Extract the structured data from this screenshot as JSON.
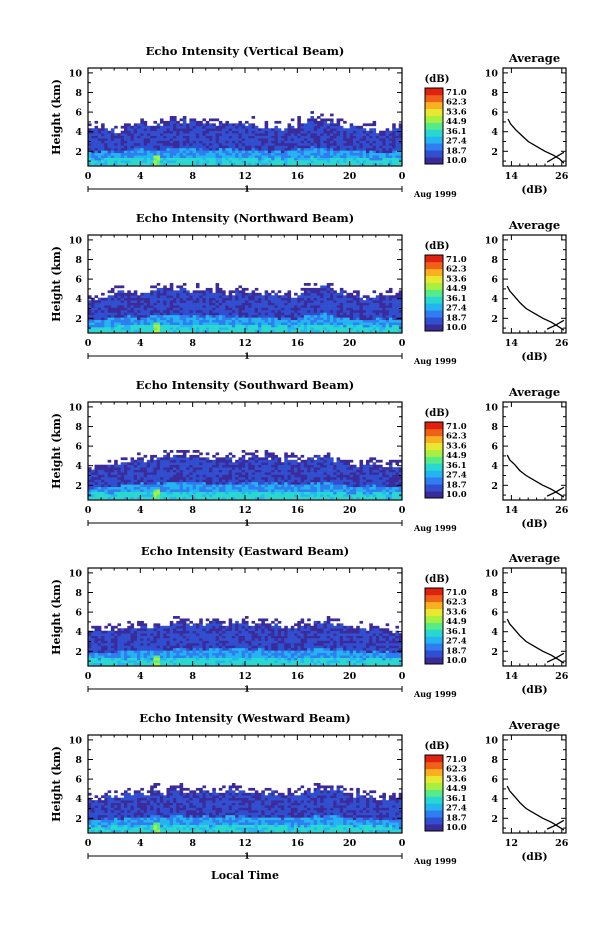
{
  "page": {
    "xlabel": "Local Time",
    "date_label": "Aug 1999",
    "day_label": "1"
  },
  "colorbar": {
    "unit": "(dB)",
    "ticks": [
      "71.0",
      "62.3",
      "53.6",
      "44.9",
      "36.1",
      "27.4",
      "18.7",
      "10.0"
    ],
    "range": [
      10.0,
      71.0
    ],
    "colors": [
      "#3a2a9a",
      "#2f4fd0",
      "#2f7df0",
      "#25b4f2",
      "#28d8d0",
      "#56ea88",
      "#a8f040",
      "#e8e830",
      "#f8b020",
      "#f06018",
      "#e02010"
    ]
  },
  "chart_data": [
    {
      "type": "heatmap",
      "title": "Echo Intensity (Vertical Beam)",
      "ylabel": "Height (km)",
      "x_ticks": [
        "0",
        "4",
        "8",
        "12",
        "16",
        "20",
        "0"
      ],
      "xlim": [
        0,
        24
      ],
      "ylim": [
        0.5,
        10.5
      ],
      "y_ticks": [
        "10",
        "8",
        "6",
        "4",
        "2"
      ],
      "top_height_km": [
        4.1,
        4.2,
        3.9,
        4.4,
        4.6,
        4.3,
        4.8,
        5.0,
        4.9,
        4.7,
        4.8,
        4.6,
        4.7,
        4.5,
        4.3,
        4.2,
        4.6,
        5.3,
        5.0,
        4.6,
        4.3,
        4.4,
        4.0,
        4.2
      ],
      "average": {
        "title": "Average",
        "xlabel": "(dB)",
        "x_ticks": [
          "14",
          "26"
        ],
        "xlim": [
          12,
          27
        ],
        "y_ticks": [
          "10",
          "8",
          "6",
          "4",
          "2"
        ],
        "ylim": [
          0.5,
          10.5
        ],
        "profile_db": [
          26.5,
          25.5,
          24.0,
          22.0,
          20.0,
          18.0,
          16.5,
          15.0,
          13.8,
          13.2
        ],
        "profile_height_km": [
          0.8,
          1.2,
          1.6,
          2.0,
          2.5,
          3.0,
          3.6,
          4.2,
          4.8,
          5.3
        ],
        "tail_db": [
          22.5,
          24.5,
          26.5
        ],
        "tail_height_km": [
          0.9,
          1.4,
          1.9
        ]
      }
    },
    {
      "type": "heatmap",
      "title": "Echo Intensity (Northward Beam)",
      "ylabel": "Height (km)",
      "x_ticks": [
        "0",
        "4",
        "8",
        "12",
        "16",
        "20",
        "0"
      ],
      "xlim": [
        0,
        24
      ],
      "ylim": [
        0.5,
        10.5
      ],
      "y_ticks": [
        "10",
        "8",
        "6",
        "4",
        "2"
      ],
      "top_height_km": [
        3.6,
        3.9,
        4.4,
        4.5,
        4.2,
        4.7,
        4.8,
        4.9,
        4.6,
        4.7,
        4.5,
        4.4,
        4.6,
        4.4,
        4.2,
        4.0,
        4.3,
        4.9,
        5.1,
        4.6,
        4.2,
        4.0,
        3.9,
        4.1
      ],
      "average": {
        "title": "Average",
        "xlabel": "(dB)",
        "x_ticks": [
          "14",
          "26"
        ],
        "xlim": [
          12,
          27
        ],
        "y_ticks": [
          "10",
          "8",
          "6",
          "4",
          "2"
        ],
        "ylim": [
          0.5,
          10.5
        ],
        "profile_db": [
          26.5,
          25.0,
          23.5,
          21.5,
          19.5,
          17.5,
          16.0,
          14.8,
          13.6,
          13.0
        ],
        "profile_height_km": [
          0.8,
          1.2,
          1.6,
          2.0,
          2.5,
          3.0,
          3.6,
          4.2,
          4.8,
          5.3
        ],
        "tail_db": [
          22.5,
          24.5,
          26.5
        ],
        "tail_height_km": [
          0.9,
          1.3,
          1.8
        ]
      }
    },
    {
      "type": "heatmap",
      "title": "Echo Intensity (Southward Beam)",
      "ylabel": "Height (km)",
      "x_ticks": [
        "0",
        "4",
        "8",
        "12",
        "16",
        "20",
        "0"
      ],
      "xlim": [
        0,
        24
      ],
      "ylim": [
        0.5,
        10.5
      ],
      "y_ticks": [
        "10",
        "8",
        "6",
        "4",
        "2"
      ],
      "top_height_km": [
        3.5,
        3.8,
        3.9,
        4.3,
        4.5,
        4.6,
        4.8,
        4.9,
        4.7,
        4.6,
        4.6,
        4.5,
        4.7,
        4.6,
        4.8,
        4.5,
        4.3,
        4.6,
        4.8,
        4.4,
        4.0,
        4.1,
        3.9,
        3.8
      ],
      "average": {
        "title": "Average",
        "xlabel": "(dB)",
        "x_ticks": [
          "14",
          "26"
        ],
        "xlim": [
          12,
          27
        ],
        "y_ticks": [
          "10",
          "8",
          "6",
          "4",
          "2"
        ],
        "ylim": [
          0.5,
          10.5
        ],
        "profile_db": [
          26.5,
          25.0,
          23.5,
          21.5,
          19.5,
          17.5,
          16.0,
          14.8,
          13.6,
          13.0
        ],
        "profile_height_km": [
          0.8,
          1.2,
          1.6,
          2.0,
          2.5,
          3.0,
          3.5,
          4.1,
          4.6,
          5.1
        ],
        "tail_db": [
          22.5,
          24.5,
          26.5
        ],
        "tail_height_km": [
          0.9,
          1.3,
          1.8
        ]
      }
    },
    {
      "type": "heatmap",
      "title": "Echo Intensity (Eastward Beam)",
      "ylabel": "Height (km)",
      "x_ticks": [
        "0",
        "4",
        "8",
        "12",
        "16",
        "20",
        "0"
      ],
      "xlim": [
        0,
        24
      ],
      "ylim": [
        0.5,
        10.5
      ],
      "y_ticks": [
        "10",
        "8",
        "6",
        "4",
        "2"
      ],
      "top_height_km": [
        3.7,
        3.9,
        4.1,
        4.4,
        4.5,
        4.4,
        4.6,
        4.8,
        4.7,
        4.6,
        4.8,
        4.7,
        4.8,
        4.6,
        4.5,
        4.3,
        4.4,
        4.7,
        5.0,
        4.6,
        4.2,
        4.2,
        4.0,
        3.9
      ],
      "average": {
        "title": "Average",
        "xlabel": "(dB)",
        "x_ticks": [
          "14",
          "26"
        ],
        "xlim": [
          12,
          27
        ],
        "y_ticks": [
          "10",
          "8",
          "6",
          "4",
          "2"
        ],
        "ylim": [
          0.5,
          10.5
        ],
        "profile_db": [
          26.5,
          25.0,
          23.5,
          21.5,
          19.5,
          17.5,
          16.0,
          14.8,
          13.6,
          13.0
        ],
        "profile_height_km": [
          0.8,
          1.2,
          1.6,
          2.0,
          2.5,
          3.0,
          3.6,
          4.2,
          4.8,
          5.3
        ],
        "tail_db": [
          22.5,
          24.5,
          26.5
        ],
        "tail_height_km": [
          0.9,
          1.3,
          1.8
        ]
      }
    },
    {
      "type": "heatmap",
      "title": "Echo Intensity (Westward Beam)",
      "ylabel": "Height (km)",
      "x_ticks": [
        "0",
        "4",
        "8",
        "12",
        "16",
        "20",
        "0"
      ],
      "xlim": [
        0,
        24
      ],
      "ylim": [
        0.5,
        10.5
      ],
      "y_ticks": [
        "10",
        "8",
        "6",
        "4",
        "2"
      ],
      "top_height_km": [
        3.6,
        3.9,
        4.0,
        4.3,
        4.4,
        4.6,
        4.5,
        4.7,
        4.6,
        4.5,
        4.7,
        4.8,
        4.6,
        4.5,
        4.4,
        4.3,
        4.4,
        4.6,
        4.9,
        4.8,
        4.3,
        4.1,
        4.0,
        3.8
      ],
      "average": {
        "title": "Average",
        "xlabel": "(dB)",
        "x_ticks": [
          "12",
          "26"
        ],
        "xlim": [
          12,
          27
        ],
        "y_ticks": [
          "10",
          "8",
          "6",
          "4",
          "2"
        ],
        "ylim": [
          0.5,
          10.5
        ],
        "profile_db": [
          26.5,
          25.0,
          23.5,
          21.5,
          19.5,
          17.5,
          16.0,
          14.8,
          13.6,
          13.0
        ],
        "profile_height_km": [
          0.8,
          1.2,
          1.6,
          2.0,
          2.5,
          3.0,
          3.6,
          4.2,
          4.8,
          5.3
        ],
        "tail_db": [
          22.5,
          24.5,
          26.5
        ],
        "tail_height_km": [
          0.9,
          1.3,
          1.8
        ]
      }
    }
  ]
}
